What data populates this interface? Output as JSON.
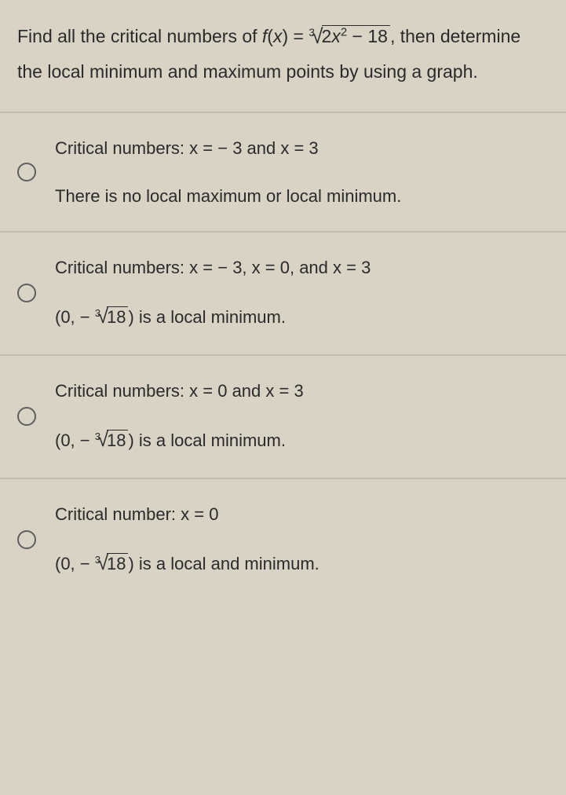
{
  "colors": {
    "page_bg": "#d8d3c5",
    "text": "#2a2a2a",
    "divider": "#c2bdaf",
    "radio_border": "#5e5e5e"
  },
  "typography": {
    "question_fontsize": 23,
    "option_fontsize": 22,
    "line_height": 1.9
  },
  "question": {
    "prefix": "Find all the critical numbers of ",
    "func_lhs_f": "f",
    "func_lhs_open": "(",
    "func_lhs_x": "x",
    "func_lhs_close": ") = ",
    "root_index": "3",
    "radicand_2": "2",
    "radicand_x": "x",
    "radicand_exp": "2",
    "radicand_tail": " − 18",
    "suffix": ", then determine the local minimum and maximum points by using a graph."
  },
  "options": [
    {
      "line1_pre": "Critical numbers: ",
      "line1_x1": "x",
      "line1_mid": " =  − 3 and ",
      "line1_x2": "x",
      "line1_post": " = 3",
      "line2_full": "There is no local maximum or local minimum."
    },
    {
      "line1_pre": "Critical numbers: ",
      "line1_x1": "x",
      "line1_mid1": " =  − 3, ",
      "line1_x2": "x",
      "line1_mid2": " = 0, and ",
      "line1_x3": "x",
      "line1_post": " = 3",
      "line2_pre": "(0, − ",
      "line2_root_index": "3",
      "line2_radicand": "18",
      "line2_post": ") is a local minimum."
    },
    {
      "line1_pre": "Critical numbers: ",
      "line1_x1": "x",
      "line1_mid": " = 0 and ",
      "line1_x2": "x",
      "line1_post": " = 3",
      "line2_pre": "(0, − ",
      "line2_root_index": "3",
      "line2_radicand": "18",
      "line2_post": ") is a local minimum."
    },
    {
      "line1_pre": "Critical number: ",
      "line1_x1": "x",
      "line1_post": " = 0",
      "line2_pre": "(0, − ",
      "line2_root_index": "3",
      "line2_radicand": "18",
      "line2_post": ") is a local and minimum."
    }
  ]
}
